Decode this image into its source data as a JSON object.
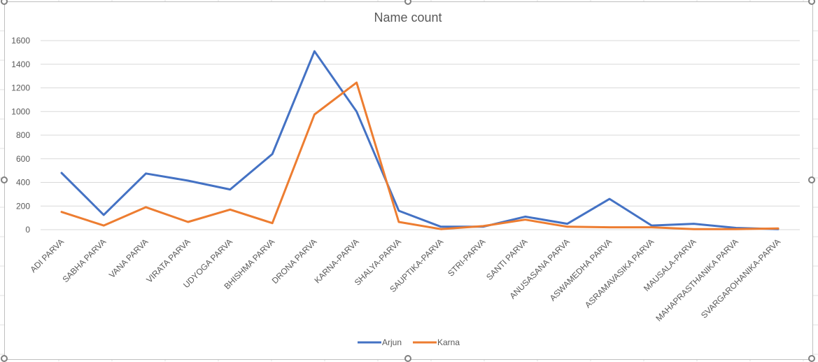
{
  "chart_data": {
    "type": "line",
    "title": "Name count",
    "xlabel": "",
    "ylabel": "",
    "ylim": [
      0,
      1600
    ],
    "yticks": [
      "0",
      "200",
      "400",
      "600",
      "800",
      "1000",
      "1200",
      "1400",
      "1600"
    ],
    "grid": true,
    "legend_position": "bottom",
    "categories": [
      "ADI PARVA",
      "SABHA PARVA",
      "VANA PARVA",
      "VIRATA PARVA",
      "UDYOGA PARVA",
      "BHISHMA PARVA",
      "DRONA PARVA",
      "KARNA-PARVA",
      "SHALYA-PARVA",
      "SAUPTIKA-PARVA",
      "STRI-PARVA",
      "SANTI PARVA",
      "ANUSASANA PARVA",
      "ASWAMEDHA PARVA",
      "ASRAMAVASIKA PARVA",
      "MAUSALA-PARVA",
      "MAHAPRASTHANIKA PARVA",
      "SVARGAROHANIKA-PARVA"
    ],
    "series": [
      {
        "name": "Arjun",
        "color": "#4472C4",
        "values": [
          480,
          125,
          475,
          415,
          340,
          640,
          1510,
          1000,
          160,
          25,
          25,
          110,
          50,
          260,
          35,
          50,
          15,
          5
        ]
      },
      {
        "name": "Karna",
        "color": "#ED7D31",
        "values": [
          150,
          35,
          190,
          65,
          170,
          55,
          975,
          1245,
          65,
          5,
          30,
          85,
          25,
          20,
          20,
          5,
          5,
          10
        ]
      }
    ]
  }
}
